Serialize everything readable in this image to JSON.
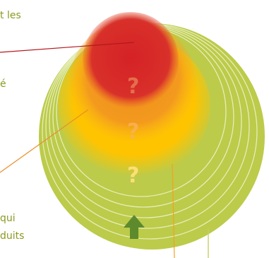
{
  "diagram": {
    "side_text": [
      {
        "text": "t les"
      },
      {
        "text": "é"
      },
      {
        "text": "qui"
      },
      {
        "text": "duits"
      }
    ],
    "question_mark": "?",
    "colors": {
      "outer_olive": "#bccb4a",
      "ring_line": "#e6eeb8",
      "yellow": "#ffc400",
      "orange": "#f49b1d",
      "red": "#d62828",
      "arrow": "#5d8a2c",
      "leader_red": "#b3191d",
      "leader_orange": "#e8902a",
      "leader_yellow": "#f4a21e",
      "leader_olive": "#c6d06a",
      "text_olive": "#8a9a22"
    },
    "icons": {
      "arrow": "up-arrow-icon"
    }
  }
}
